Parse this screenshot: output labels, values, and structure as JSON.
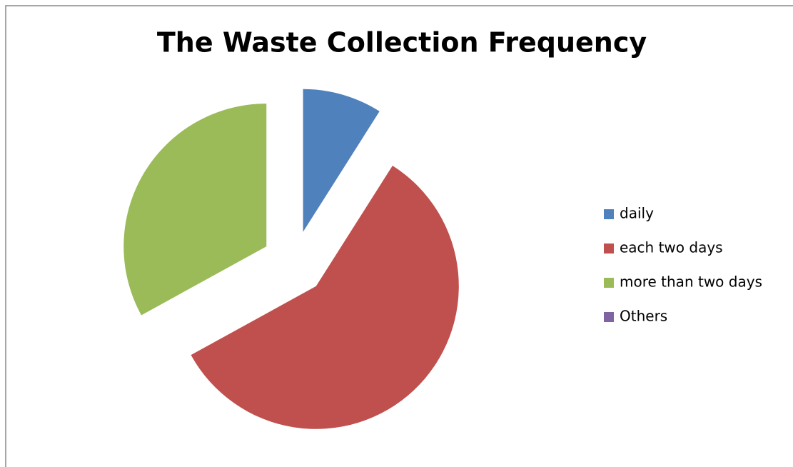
{
  "chart_data": {
    "type": "pie",
    "title": "The Waste Collection Frequency",
    "categories": [
      "daily",
      "each two days",
      "more than two days",
      "Others"
    ],
    "values": [
      9,
      58,
      33,
      0
    ],
    "colors": [
      "#4f81bd",
      "#c0504d",
      "#9bbb59",
      "#8064a2"
    ],
    "legend": "right",
    "exploded": true
  }
}
